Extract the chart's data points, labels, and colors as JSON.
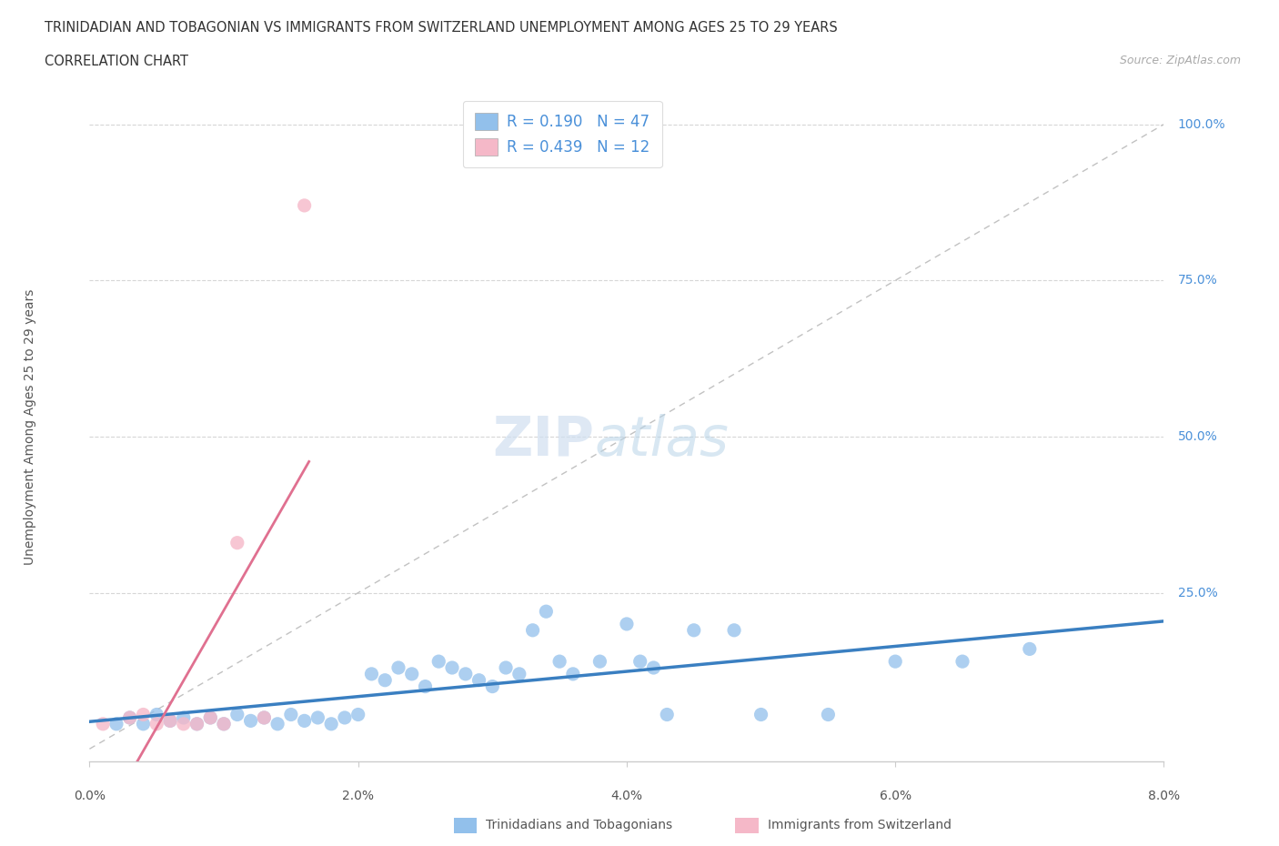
{
  "title_line1": "TRINIDADIAN AND TOBAGONIAN VS IMMIGRANTS FROM SWITZERLAND UNEMPLOYMENT AMONG AGES 25 TO 29 YEARS",
  "title_line2": "CORRELATION CHART",
  "source_text": "Source: ZipAtlas.com",
  "ylabel": "Unemployment Among Ages 25 to 29 years",
  "xlim": [
    0.0,
    0.08
  ],
  "ylim": [
    -0.02,
    1.05
  ],
  "xtick_labels": [
    "0.0%",
    "2.0%",
    "4.0%",
    "6.0%",
    "8.0%"
  ],
  "xtick_vals": [
    0.0,
    0.02,
    0.04,
    0.06,
    0.08
  ],
  "ytick_labels": [
    "100.0%",
    "75.0%",
    "50.0%",
    "25.0%"
  ],
  "ytick_vals": [
    1.0,
    0.75,
    0.5,
    0.25
  ],
  "blue_R": 0.19,
  "blue_N": 47,
  "pink_R": 0.439,
  "pink_N": 12,
  "blue_color": "#92c0eb",
  "pink_color": "#f5b8c8",
  "blue_line_color": "#3a7fc1",
  "pink_line_color": "#e07090",
  "legend_label_blue": "Trinidadians and Tobagonians",
  "legend_label_pink": "Immigrants from Switzerland",
  "watermark_zip": "ZIP",
  "watermark_atlas": "atlas",
  "background_color": "#ffffff",
  "blue_scatter_x": [
    0.002,
    0.003,
    0.004,
    0.005,
    0.006,
    0.007,
    0.008,
    0.009,
    0.01,
    0.011,
    0.012,
    0.013,
    0.014,
    0.015,
    0.016,
    0.017,
    0.018,
    0.019,
    0.02,
    0.021,
    0.022,
    0.023,
    0.024,
    0.025,
    0.026,
    0.027,
    0.028,
    0.029,
    0.03,
    0.031,
    0.032,
    0.033,
    0.034,
    0.035,
    0.036,
    0.038,
    0.04,
    0.041,
    0.042,
    0.043,
    0.045,
    0.048,
    0.05,
    0.055,
    0.06,
    0.065,
    0.07
  ],
  "blue_scatter_y": [
    0.04,
    0.05,
    0.04,
    0.055,
    0.045,
    0.05,
    0.04,
    0.05,
    0.04,
    0.055,
    0.045,
    0.05,
    0.04,
    0.055,
    0.045,
    0.05,
    0.04,
    0.05,
    0.055,
    0.12,
    0.11,
    0.13,
    0.12,
    0.1,
    0.14,
    0.13,
    0.12,
    0.11,
    0.1,
    0.13,
    0.12,
    0.19,
    0.22,
    0.14,
    0.12,
    0.14,
    0.2,
    0.14,
    0.13,
    0.055,
    0.19,
    0.19,
    0.055,
    0.055,
    0.14,
    0.14,
    0.16
  ],
  "pink_scatter_x": [
    0.001,
    0.003,
    0.004,
    0.005,
    0.006,
    0.007,
    0.008,
    0.009,
    0.01,
    0.011,
    0.013,
    0.016
  ],
  "pink_scatter_y": [
    0.04,
    0.05,
    0.055,
    0.04,
    0.045,
    0.04,
    0.04,
    0.05,
    0.04,
    0.33,
    0.05,
    0.87
  ]
}
